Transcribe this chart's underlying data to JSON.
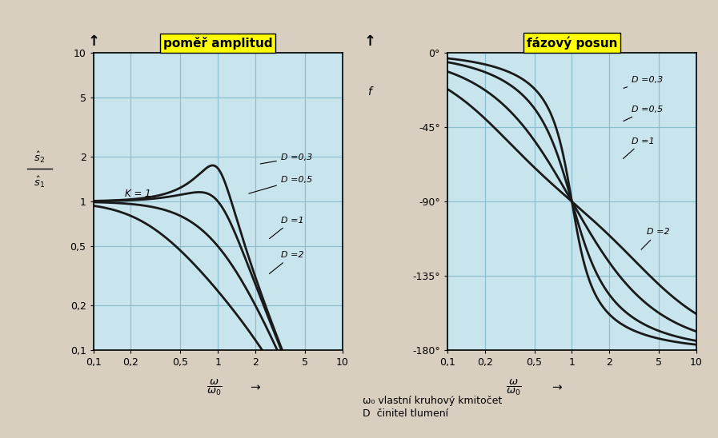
{
  "title_left": "poměř amplitud",
  "title_right": "fázový posun",
  "D_values": [
    0.3,
    0.5,
    1.0,
    2.0
  ],
  "D_labels": [
    "D =0,3",
    "D =0,5",
    "D =1",
    "D =2"
  ],
  "K_label": "K = 1",
  "xtick_labels": [
    "0,1",
    "0,2",
    "0,5",
    "1",
    "2",
    "5",
    "10"
  ],
  "xtick_vals": [
    0.1,
    0.2,
    0.5,
    1.0,
    2.0,
    5.0,
    10.0
  ],
  "ytick_left": [
    0.1,
    0.2,
    0.5,
    1.0,
    2.0,
    5.0,
    10.0
  ],
  "ytick_left_labels": [
    "0,1",
    "0,2",
    "0,5",
    "1",
    "2",
    "5",
    "10"
  ],
  "ytick_right": [
    0,
    -45,
    -90,
    -135,
    -180
  ],
  "ytick_right_labels": [
    "0°",
    "-45°",
    "-90°",
    "-135°",
    "-180°"
  ],
  "bg_color": "#c8e4ed",
  "outer_bg": "#d8cfc0",
  "title_bg": "#ffff00",
  "line_color": "#1a1a1a",
  "grid_color": "#88bece",
  "footnote1": "ω₀ vlastní kruhový kmitočet",
  "footnote2": "D  činitel tlumení"
}
